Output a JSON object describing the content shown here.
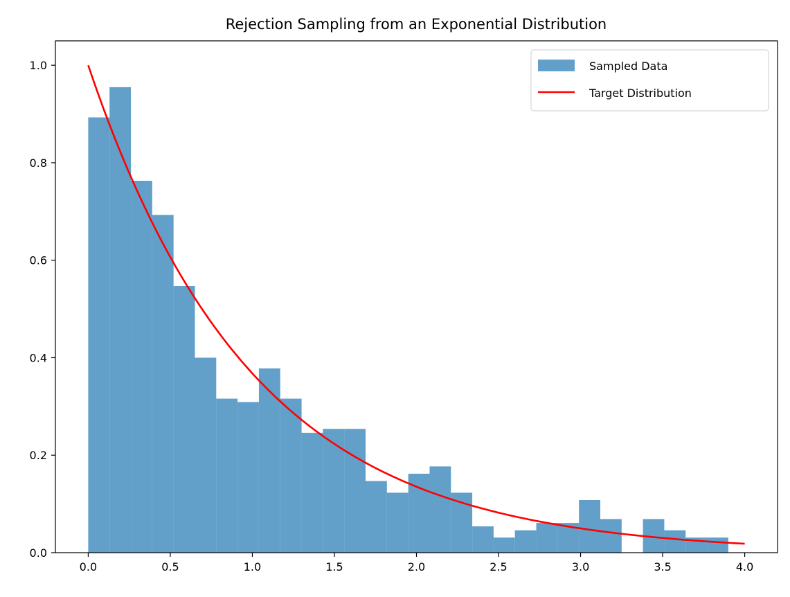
{
  "chart_data": {
    "type": "bar",
    "title": "Rejection Sampling from an Exponential Distribution",
    "xlabel": "",
    "ylabel": "",
    "xlim": [
      -0.2,
      4.2
    ],
    "ylim": [
      0,
      1.05
    ],
    "xticks": [
      "0.0",
      "0.5",
      "1.0",
      "1.5",
      "2.0",
      "2.5",
      "3.0",
      "3.5",
      "4.0"
    ],
    "yticks": [
      "0.0",
      "0.2",
      "0.4",
      "0.6",
      "0.8",
      "1.0"
    ],
    "grid": false,
    "legend_position": "top-right",
    "histogram": {
      "name": "Sampled Data",
      "color": "#1f77b4",
      "alpha": 0.7,
      "bin_start": 0.0,
      "bin_width": 0.13,
      "values": [
        0.893,
        0.955,
        0.763,
        0.693,
        0.547,
        0.4,
        0.316,
        0.309,
        0.378,
        0.316,
        0.246,
        0.254,
        0.254,
        0.147,
        0.123,
        0.162,
        0.177,
        0.123,
        0.054,
        0.031,
        0.046,
        0.061,
        0.061,
        0.108,
        0.069,
        0.0,
        0.069,
        0.046,
        0.031,
        0.031
      ]
    },
    "curve": {
      "name": "Target Distribution",
      "color": "#ff0000",
      "x_range": [
        0,
        4
      ],
      "function": "exp(-x)"
    }
  }
}
